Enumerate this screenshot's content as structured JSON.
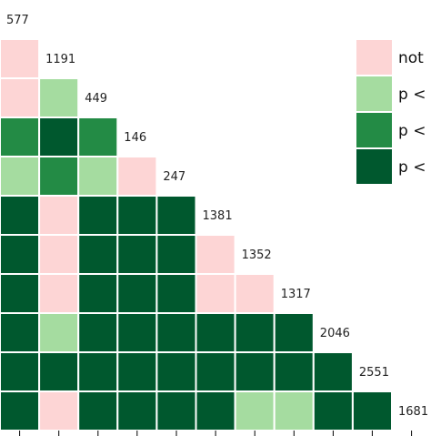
{
  "chart_data": {
    "type": "heatmap",
    "layout": "lower-triangle",
    "title": "",
    "xlabel": "",
    "ylabel": "",
    "colors": {
      "not": "#fdd5d5",
      "level1": "#a5dca0",
      "level2": "#238b45",
      "level3": "#00582e"
    },
    "legend": {
      "placement": "top-right",
      "entries": [
        {
          "key": "not",
          "label": "not"
        },
        {
          "key": "level1",
          "label": "p <"
        },
        {
          "key": "level2",
          "label": "p <"
        },
        {
          "key": "level3",
          "label": "p <"
        }
      ]
    },
    "diagonal_counts": [
      577,
      1191,
      449,
      146,
      247,
      1381,
      1352,
      1317,
      2046,
      2551,
      1681
    ],
    "rows": [
      [],
      [
        "not"
      ],
      [
        "not",
        "level1"
      ],
      [
        "level2",
        "level3",
        "level2"
      ],
      [
        "level1",
        "level2",
        "level1",
        "not"
      ],
      [
        "level3",
        "not",
        "level3",
        "level3",
        "level3"
      ],
      [
        "level3",
        "not",
        "level3",
        "level3",
        "level3",
        "not"
      ],
      [
        "level3",
        "not",
        "level3",
        "level3",
        "level3",
        "not",
        "not"
      ],
      [
        "level3",
        "level1",
        "level3",
        "level3",
        "level3",
        "level3",
        "level3",
        "level3"
      ],
      [
        "level3",
        "level3",
        "level3",
        "level3",
        "level3",
        "level3",
        "level3",
        "level3",
        "level3"
      ],
      [
        "level3",
        "not",
        "level3",
        "level3",
        "level3",
        "level3",
        "level1",
        "level1",
        "level3",
        "level3"
      ]
    ]
  }
}
